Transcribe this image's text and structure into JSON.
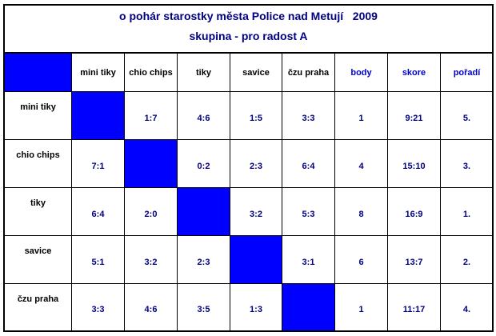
{
  "title_line1": "o pohár starostky města Police nad Metují   2009",
  "title_line2": "skupina - pro radost A",
  "colors": {
    "blue_fill": "#0000ff",
    "text_navy": "#000080",
    "header_blue": "#0000cc"
  },
  "columns": [
    "mini tiky",
    "chio chips",
    "tiky",
    "savice",
    "čzu praha"
  ],
  "stat_columns": [
    "body",
    "skore",
    "pořadí"
  ],
  "rows": [
    {
      "team": "mini tiky",
      "results": [
        "",
        "1:7",
        "4:6",
        "1:5",
        "3:3"
      ],
      "body": "1",
      "skore": "9:21",
      "poradi": "5."
    },
    {
      "team": "chio chips",
      "results": [
        "7:1",
        "",
        "0:2",
        "2:3",
        "6:4"
      ],
      "body": "4",
      "skore": "15:10",
      "poradi": "3."
    },
    {
      "team": "tiky",
      "results": [
        "6:4",
        "2:0",
        "",
        "3:2",
        "5:3"
      ],
      "body": "8",
      "skore": "16:9",
      "poradi": "1."
    },
    {
      "team": "savice",
      "results": [
        "5:1",
        "3:2",
        "2:3",
        "",
        "3:1"
      ],
      "body": "6",
      "skore": "13:7",
      "poradi": "2."
    },
    {
      "team": "čzu praha",
      "results": [
        "3:3",
        "4:6",
        "3:5",
        "1:3",
        ""
      ],
      "body": "1",
      "skore": "11:17",
      "poradi": "4."
    }
  ]
}
